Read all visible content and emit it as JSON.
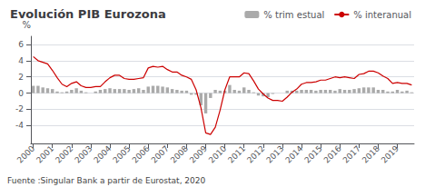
{
  "chart_data": {
    "type": "bar",
    "title": "Evolución PIB Eurozona",
    "ylabel": "%",
    "annotations": [
      "Fuente :Singular Bank a partir de Eurostat, 2020"
    ],
    "categories": [
      "2000",
      null,
      null,
      null,
      "2001",
      null,
      null,
      null,
      "2002",
      null,
      null,
      null,
      "2003",
      null,
      null,
      null,
      "2004",
      null,
      null,
      null,
      "2005",
      null,
      null,
      null,
      "2006",
      null,
      null,
      null,
      "2007",
      null,
      null,
      null,
      "2008",
      null,
      null,
      null,
      "2009",
      null,
      null,
      null,
      "2010",
      null,
      null,
      null,
      "2011",
      null,
      null,
      null,
      "2012",
      null,
      null,
      null,
      "2013",
      null,
      null,
      null,
      "2014",
      null,
      null,
      null,
      "2015",
      null,
      null,
      null,
      "2016",
      null,
      null,
      null,
      "2017",
      null,
      null,
      null,
      "2018",
      null,
      null,
      null,
      "2019",
      null,
      null,
      null
    ],
    "series": [
      {
        "name": "% trim estual",
        "type": "bar",
        "color": "#aaaaaa",
        "values": [
          0.9,
          0.9,
          0.7,
          0.6,
          0.5,
          0.2,
          0.1,
          0.2,
          0.4,
          0.6,
          0.3,
          0.1,
          0.0,
          0.2,
          0.4,
          0.5,
          0.6,
          0.5,
          0.5,
          0.5,
          0.4,
          0.5,
          0.6,
          0.4,
          0.8,
          0.9,
          0.9,
          0.8,
          0.7,
          0.5,
          0.4,
          0.3,
          0.3,
          -0.2,
          -0.2,
          -1.5,
          -2.5,
          -0.6,
          0.4,
          0.3,
          0.3,
          1.0,
          0.4,
          0.3,
          0.7,
          0.4,
          0.1,
          -0.3,
          -0.4,
          -0.5,
          -0.1,
          0.0,
          0.0,
          0.3,
          0.3,
          0.3,
          0.4,
          0.4,
          0.4,
          0.3,
          0.4,
          0.4,
          0.4,
          0.3,
          0.5,
          0.4,
          0.4,
          0.5,
          0.6,
          0.7,
          0.7,
          0.7,
          0.4,
          0.4,
          0.2,
          0.2,
          0.4,
          0.2,
          0.3,
          0.1
        ]
      },
      {
        "name": "% interanual",
        "type": "line",
        "color": "#cc0000",
        "values": [
          4.5,
          4.0,
          3.8,
          3.6,
          2.8,
          1.9,
          1.1,
          0.8,
          1.2,
          1.4,
          0.9,
          0.7,
          0.7,
          0.8,
          0.8,
          1.4,
          1.9,
          2.2,
          2.2,
          1.8,
          1.7,
          1.7,
          1.8,
          1.9,
          3.1,
          3.3,
          3.2,
          3.3,
          2.9,
          2.6,
          2.6,
          2.2,
          2.0,
          1.7,
          0.4,
          -1.8,
          -4.9,
          -5.1,
          -4.2,
          -2.1,
          0.4,
          2.0,
          2.0,
          2.0,
          2.5,
          2.4,
          1.5,
          0.5,
          -0.1,
          -0.6,
          -0.9,
          -0.9,
          -1.0,
          -0.5,
          0.1,
          0.5,
          1.1,
          1.3,
          1.3,
          1.4,
          1.6,
          1.6,
          1.8,
          2.0,
          1.9,
          2.0,
          1.9,
          1.8,
          2.3,
          2.4,
          2.7,
          2.7,
          2.5,
          2.1,
          1.8,
          1.2,
          1.3,
          1.2,
          1.2,
          1.0
        ]
      }
    ],
    "ylim": [
      -6.2,
      7.0
    ],
    "yticks": [
      -4,
      -2,
      0,
      2,
      4,
      6
    ],
    "grid": true,
    "legend": "top"
  }
}
